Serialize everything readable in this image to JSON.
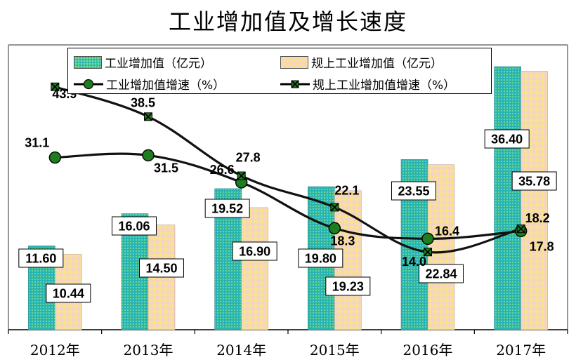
{
  "title": "工业增加值及增长速度",
  "legend": {
    "s1": "工业增加值（亿元）",
    "s2": "规上工业增加值（亿元）",
    "s3": "工业增加值增速（%）",
    "s4": "规上工业增加值增速（%）"
  },
  "colors": {
    "teal": "#2ab3b3",
    "pink": "#f6d2cc",
    "line_green": "#1e7d1e",
    "line_dark": "#000000"
  },
  "chart_data": {
    "type": "bar",
    "categories": [
      "2012年",
      "2013年",
      "2014年",
      "2015年",
      "2016年",
      "2017年"
    ],
    "series": [
      {
        "name": "工业增加值（亿元）",
        "type": "bar",
        "values": [
          11.6,
          16.06,
          19.52,
          19.8,
          23.55,
          36.4
        ],
        "labels": [
          "11.60",
          "16.06",
          "19.52",
          "19.80",
          "23.55",
          "36.40"
        ]
      },
      {
        "name": "规上工业增加值（亿元）",
        "type": "bar",
        "values": [
          10.44,
          14.5,
          16.9,
          19.23,
          22.84,
          35.78
        ],
        "labels": [
          "10.44",
          "14.50",
          "16.90",
          "19.23",
          "22.84",
          "35.78"
        ]
      },
      {
        "name": "工业增加值增速（%）",
        "type": "line",
        "values": [
          31.1,
          31.5,
          26.6,
          18.3,
          16.4,
          17.8
        ],
        "labels": [
          "31.1",
          "31.5",
          "26.6",
          "18.3",
          "16.4",
          "17.8"
        ]
      },
      {
        "name": "规上工业增加值增速（%）",
        "type": "line",
        "values": [
          43.9,
          38.5,
          27.8,
          22.1,
          14.0,
          18.2
        ],
        "labels": [
          "43.9",
          "38.5",
          "27.8",
          "22.1",
          "14.0",
          "18.2"
        ]
      }
    ],
    "bar_ylim": [
      0,
      36.4
    ],
    "line_ylim": [
      -5.4,
      45.9
    ],
    "grid": false,
    "legend_position": "top"
  }
}
